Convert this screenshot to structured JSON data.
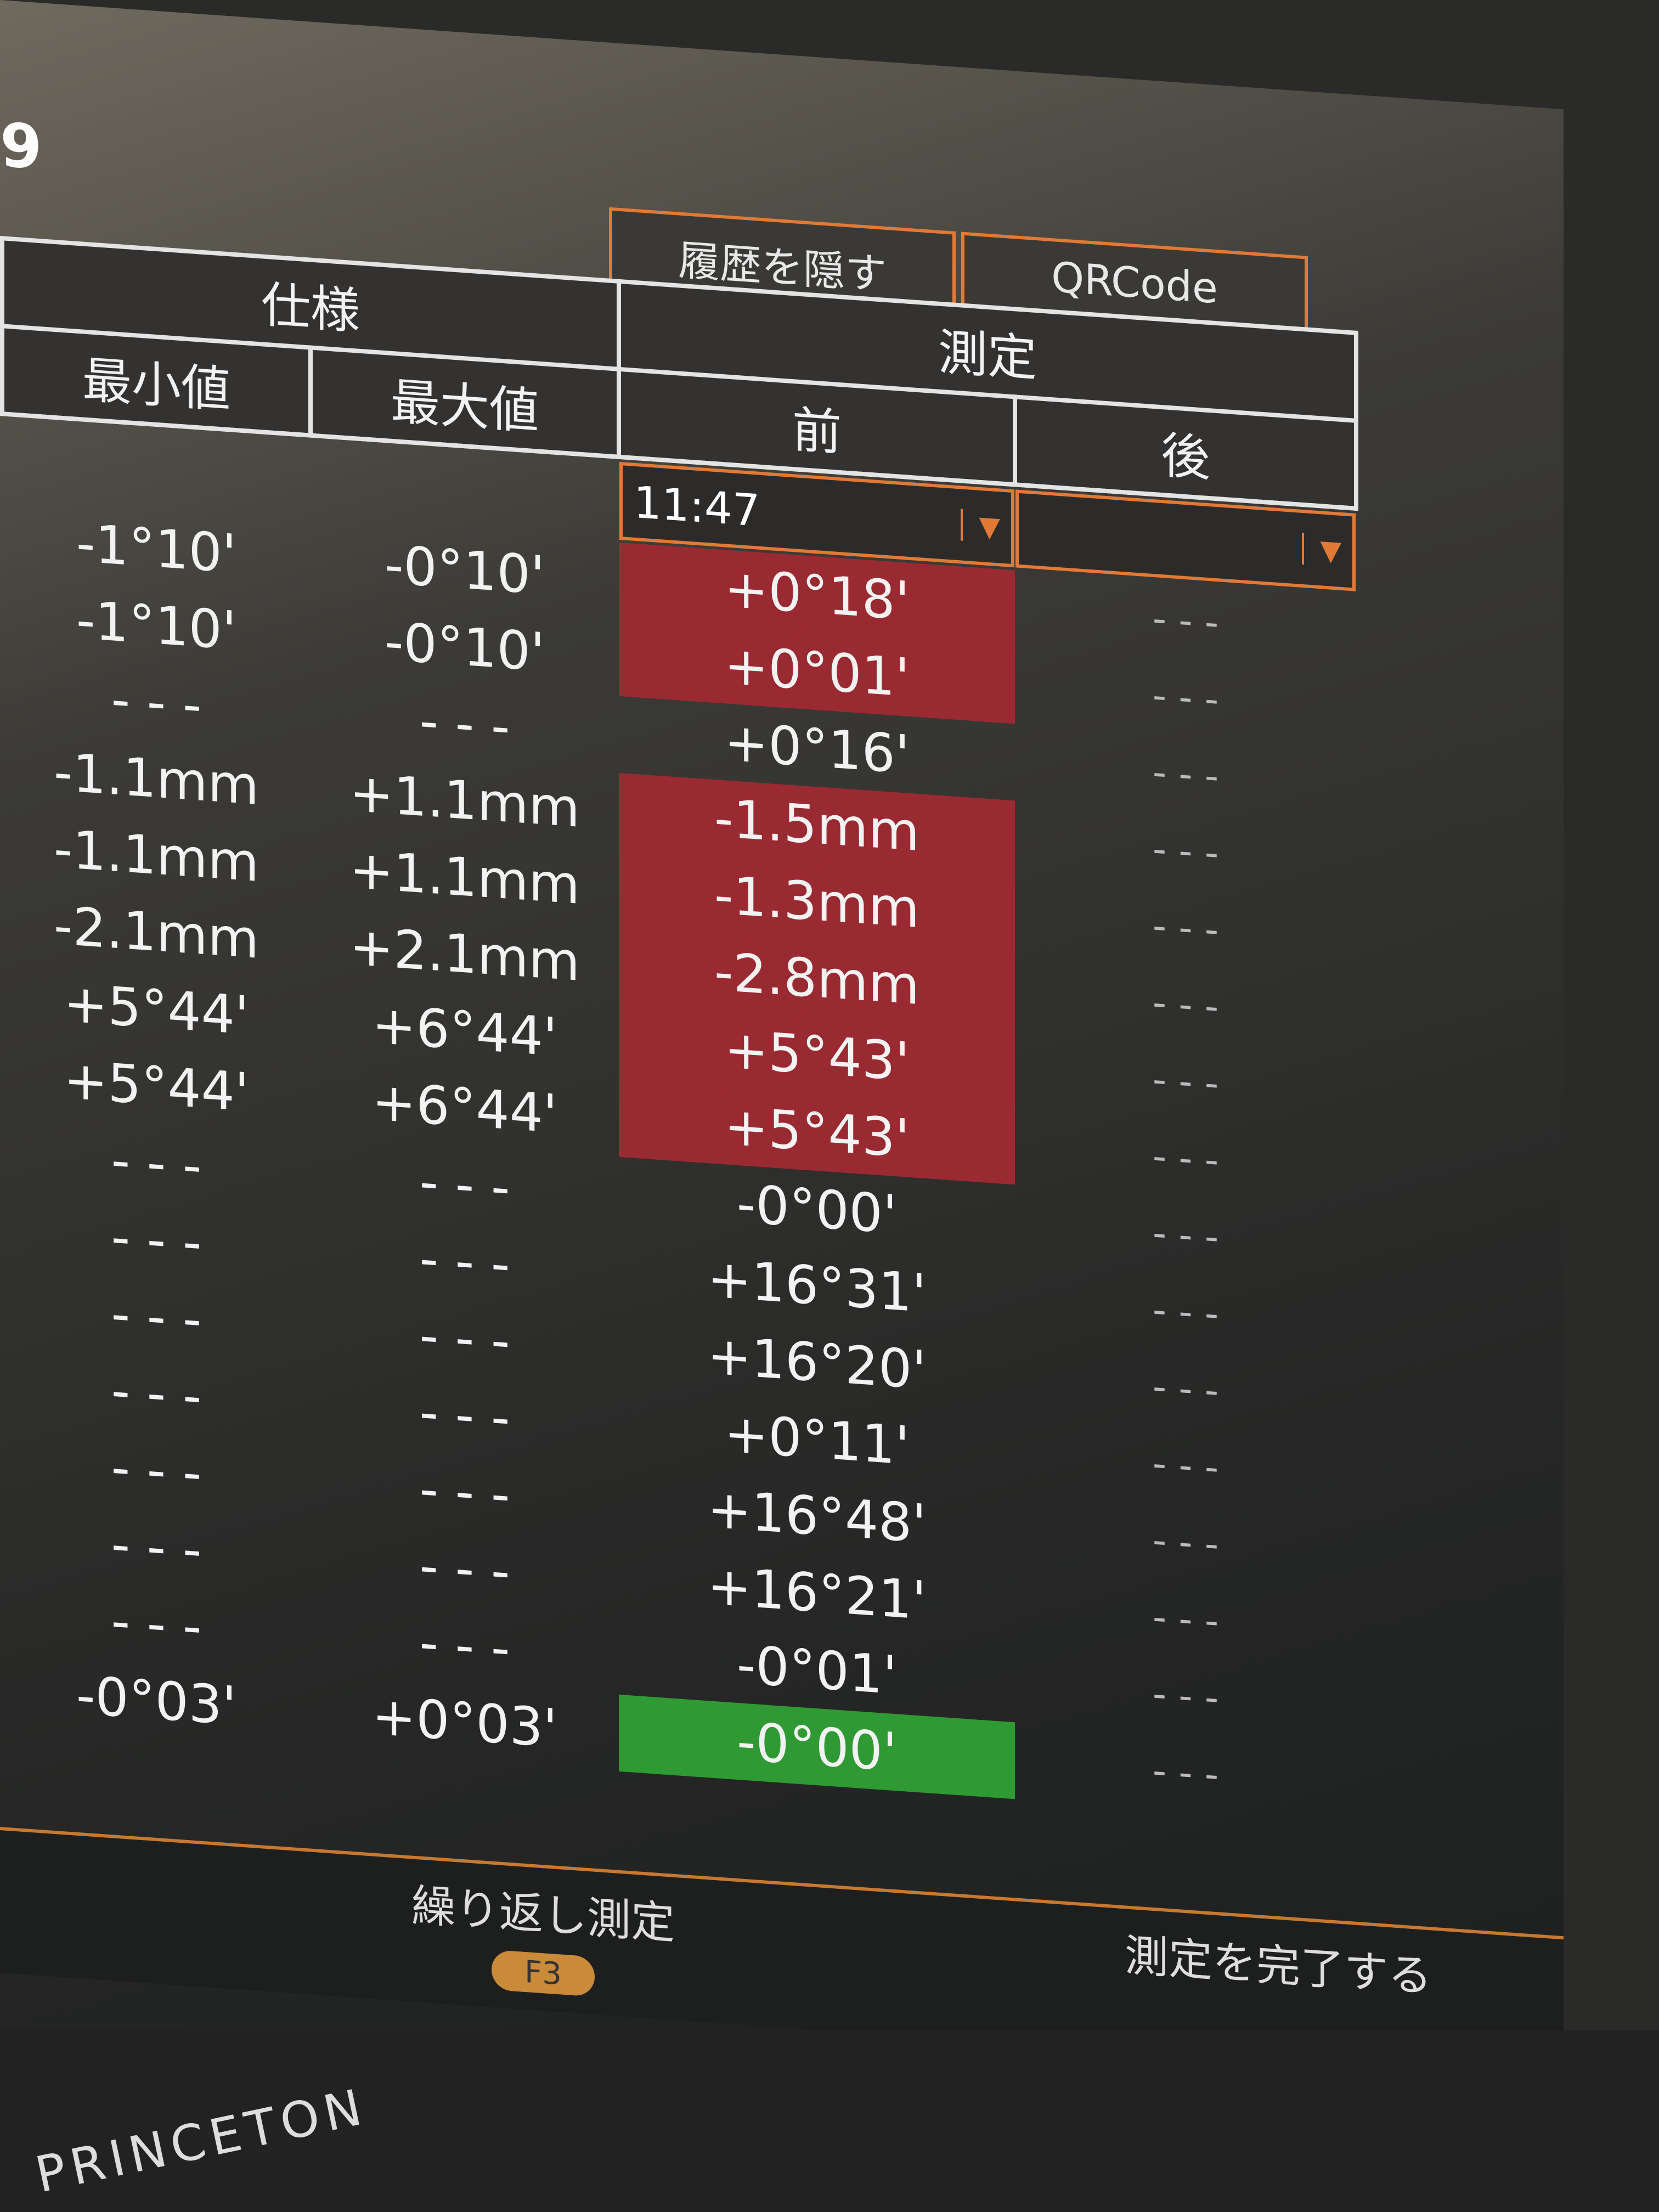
{
  "header": {
    "title_fragment": "9",
    "hide_history_label": "履歴を隠す",
    "qrcode_label": "QRCode"
  },
  "table": {
    "spec_header": "仕様",
    "measure_header": "測定",
    "min_header": "最小値",
    "max_header": "最大値",
    "before_header": "前",
    "after_header": "後",
    "before_time": "11:47",
    "after_time": "",
    "rows": [
      {
        "min": "-1°10'",
        "max": "-0°10'",
        "before": "+0°18'",
        "after": "- - -",
        "status": "out"
      },
      {
        "min": "-1°10'",
        "max": "-0°10'",
        "before": "+0°01'",
        "after": "- - -",
        "status": "out"
      },
      {
        "min": "- - -",
        "max": "- - -",
        "before": "+0°16'",
        "after": "- - -",
        "status": "none"
      },
      {
        "min": "-1.1mm",
        "max": "+1.1mm",
        "before": "-1.5mm",
        "after": "- - -",
        "status": "out"
      },
      {
        "min": "-1.1mm",
        "max": "+1.1mm",
        "before": "-1.3mm",
        "after": "- - -",
        "status": "out"
      },
      {
        "min": "-2.1mm",
        "max": "+2.1mm",
        "before": "-2.8mm",
        "after": "- - -",
        "status": "out"
      },
      {
        "min": "+5°44'",
        "max": "+6°44'",
        "before": "+5°43'",
        "after": "- - -",
        "status": "out"
      },
      {
        "min": "+5°44'",
        "max": "+6°44'",
        "before": "+5°43'",
        "after": "- - -",
        "status": "out"
      },
      {
        "min": "- - -",
        "max": "- - -",
        "before": "-0°00'",
        "after": "- - -",
        "status": "none"
      },
      {
        "min": "- - -",
        "max": "- - -",
        "before": "+16°31'",
        "after": "- - -",
        "status": "none"
      },
      {
        "min": "- - -",
        "max": "- - -",
        "before": "+16°20'",
        "after": "- - -",
        "status": "none"
      },
      {
        "min": "- - -",
        "max": "- - -",
        "before": "+0°11'",
        "after": "- - -",
        "status": "none"
      },
      {
        "min": "- - -",
        "max": "- - -",
        "before": "+16°48'",
        "after": "- - -",
        "status": "none"
      },
      {
        "min": "- - -",
        "max": "- - -",
        "before": "+16°21'",
        "after": "- - -",
        "status": "none"
      },
      {
        "min": "- - -",
        "max": "- - -",
        "before": "-0°01'",
        "after": "- - -",
        "status": "none"
      },
      {
        "min": "-0°03'",
        "max": "+0°03'",
        "before": "-0°00'",
        "after": "- - -",
        "status": "ok"
      }
    ]
  },
  "footer": {
    "repeat_label": "繰り返し測定",
    "repeat_key": "F3",
    "finish_label": "測定を完了する"
  },
  "brand": "PRINCETON",
  "colors": {
    "out_of_spec": "#9a2a31",
    "in_spec": "#2f9a33",
    "accent": "#e27a35"
  }
}
